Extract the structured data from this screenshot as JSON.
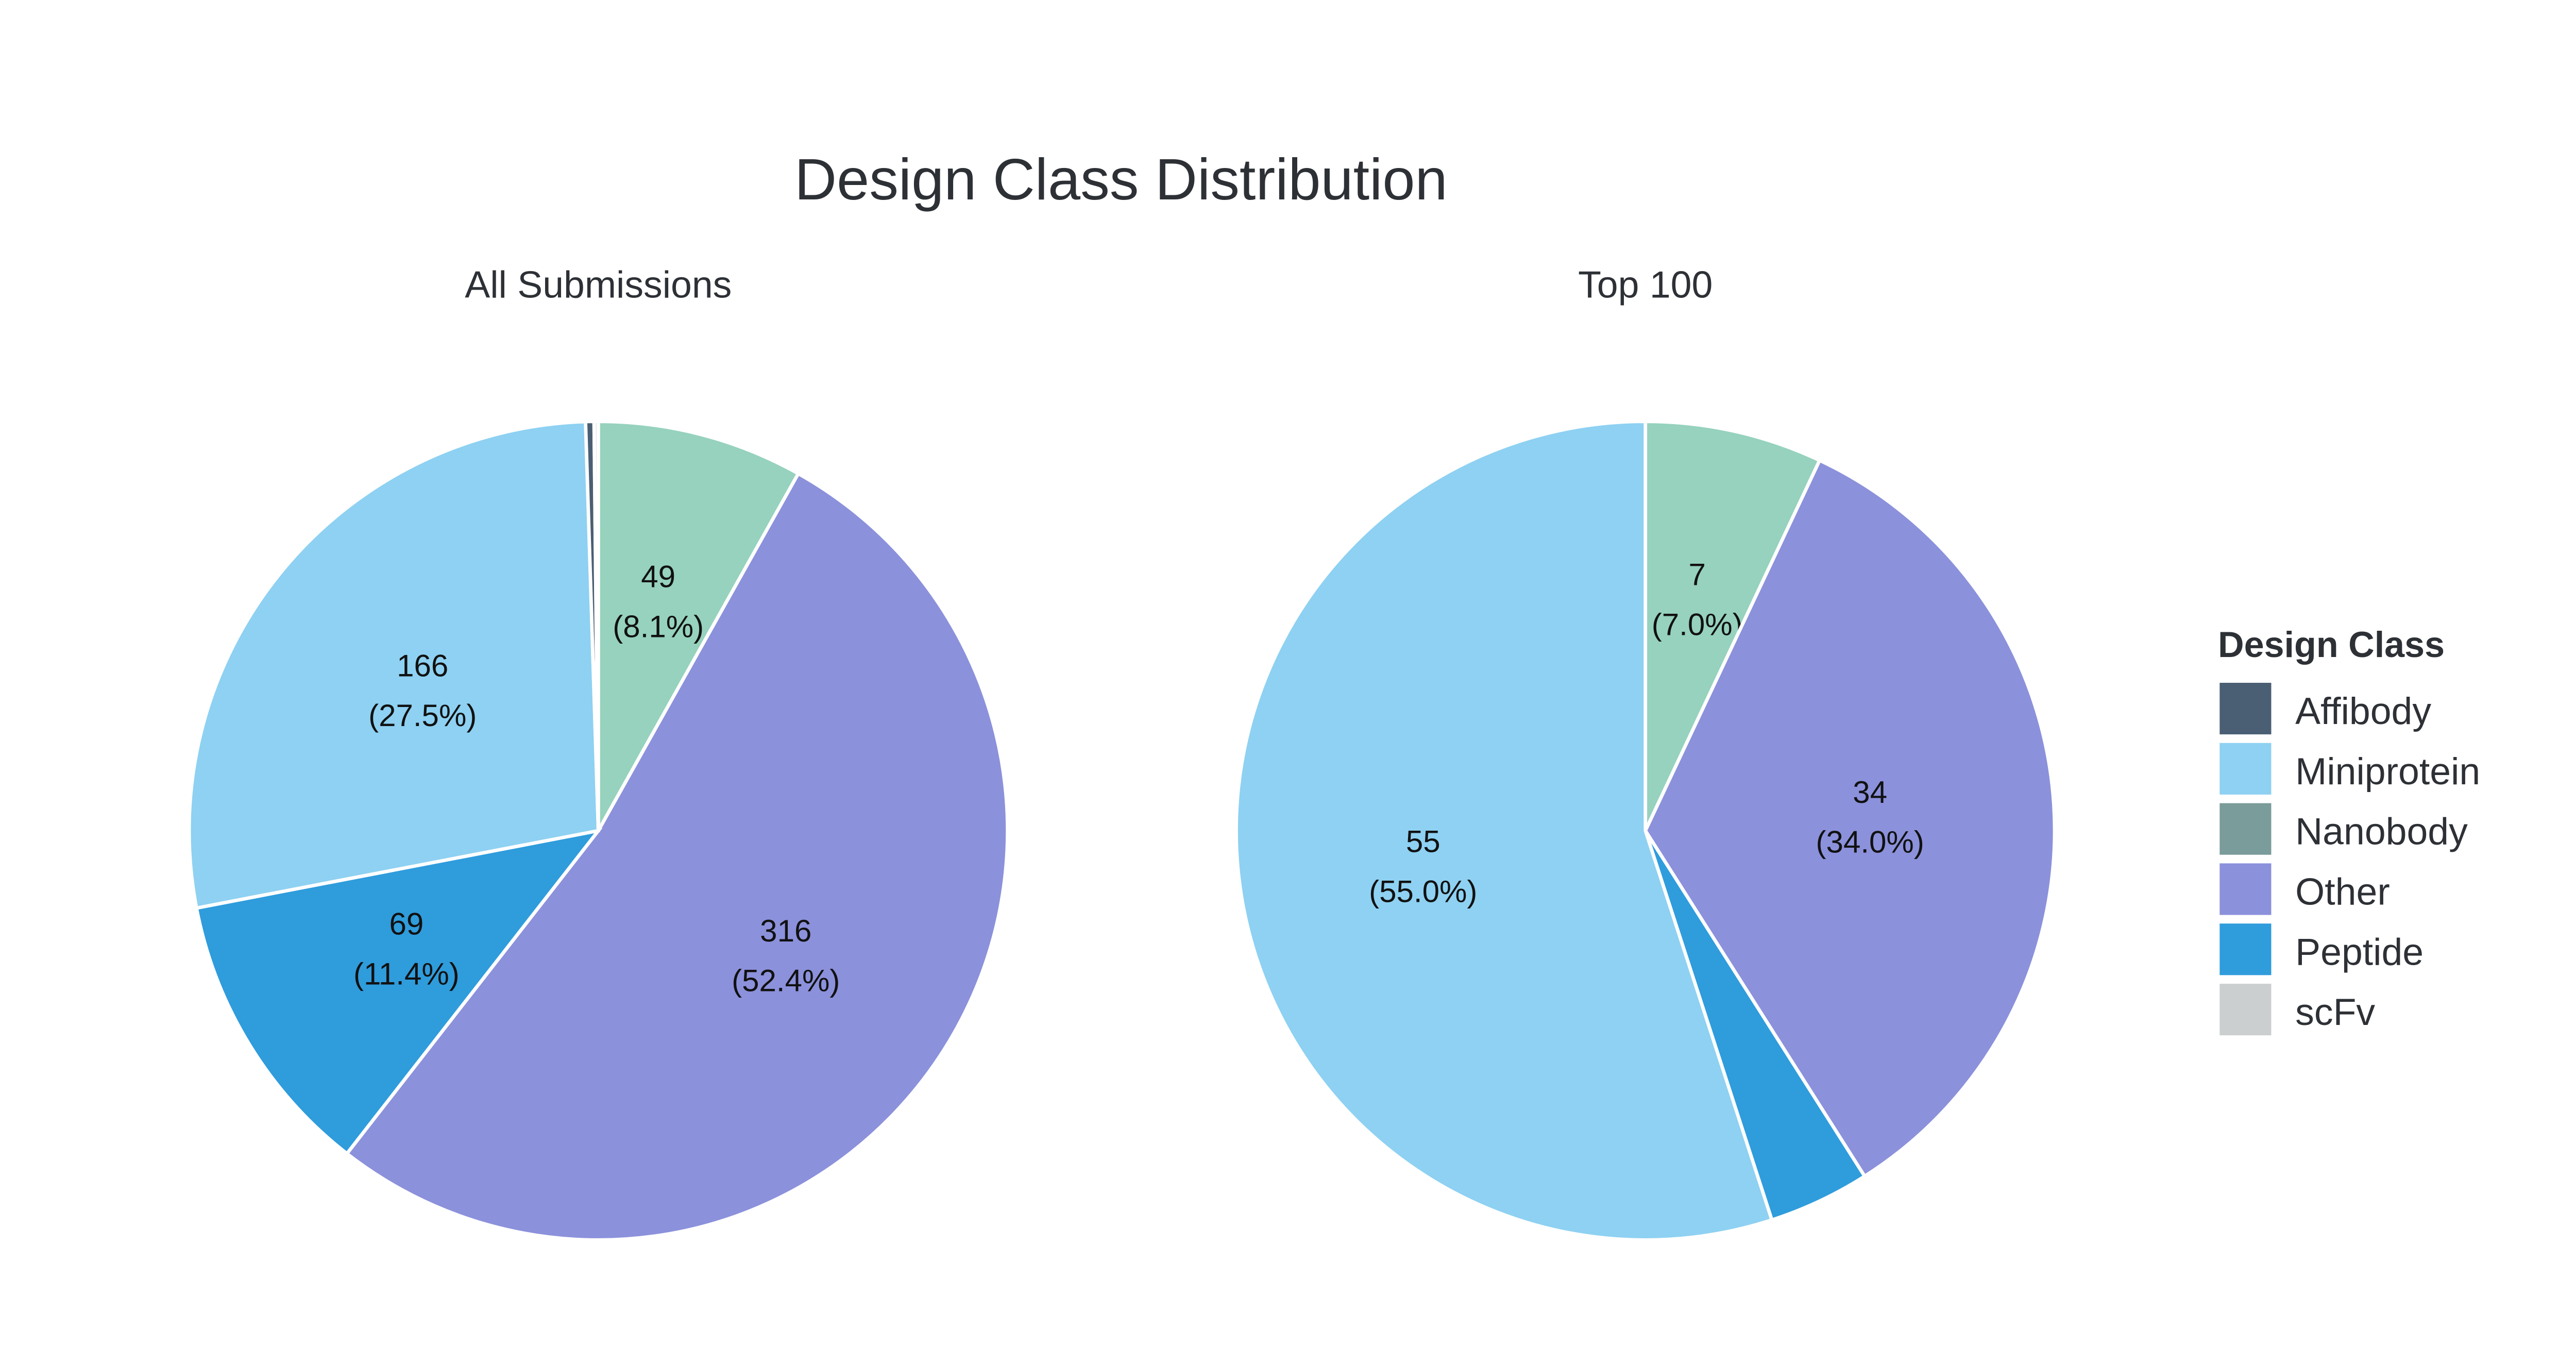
{
  "chart_data": {
    "type": "pie",
    "title": "Design Class Distribution",
    "legend": {
      "title": "Design Class",
      "position": "right",
      "entries": [
        {
          "label": "Affibody",
          "color": "#4a5f73"
        },
        {
          "label": "Miniprotein",
          "color": "#8ed1f2"
        },
        {
          "label": "Nanobody",
          "color": "#7a9c9a"
        },
        {
          "label": "Other",
          "color": "#8b91db"
        },
        {
          "label": "Peptide",
          "color": "#2f9cdc"
        },
        {
          "label": "scFv",
          "color": "#cbcfcf"
        }
      ]
    },
    "slice_colors": {
      "Affibody": "#4a5f73",
      "Miniprotein": "#8ed1f2",
      "Nanobody": "#96d2bd",
      "Other": "#8b91db",
      "Peptide": "#2f9cdc",
      "scFv": "#e4e6e6"
    },
    "pies": [
      {
        "title": "All Submissions",
        "order_clockwise_from_top": [
          "Nanobody",
          "Other",
          "Peptide",
          "Miniprotein",
          "Affibody",
          "scFv"
        ],
        "slices": [
          {
            "label": "Nanobody",
            "value": 49,
            "percent": "8.1%",
            "text": [
              "49",
              "(8.1%)"
            ]
          },
          {
            "label": "Other",
            "value": 316,
            "percent": "52.4%",
            "text": [
              "316",
              "(52.4%)"
            ]
          },
          {
            "label": "Peptide",
            "value": 69,
            "percent": "11.4%",
            "text": [
              "69",
              "(11.4%)"
            ]
          },
          {
            "label": "Miniprotein",
            "value": 166,
            "percent": "27.5%",
            "text": [
              "166",
              "(27.5%)"
            ]
          },
          {
            "label": "Affibody",
            "value": 2,
            "percent": "0.3%",
            "text": null
          },
          {
            "label": "scFv",
            "value": 1,
            "percent": "0.2%",
            "text": null
          }
        ]
      },
      {
        "title": "Top 100",
        "order_clockwise_from_top": [
          "Nanobody",
          "Other",
          "Peptide",
          "Miniprotein"
        ],
        "slices": [
          {
            "label": "Nanobody",
            "value": 7,
            "percent": "7.0%",
            "text": [
              "7",
              "(7.0%)"
            ]
          },
          {
            "label": "Other",
            "value": 34,
            "percent": "34.0%",
            "text": [
              "34",
              "(34.0%)"
            ]
          },
          {
            "label": "Peptide",
            "value": 4,
            "percent": "4.0%",
            "text": null
          },
          {
            "label": "Miniprotein",
            "value": 55,
            "percent": "55.0%",
            "text": [
              "55",
              "(55.0%)"
            ]
          }
        ]
      }
    ]
  }
}
